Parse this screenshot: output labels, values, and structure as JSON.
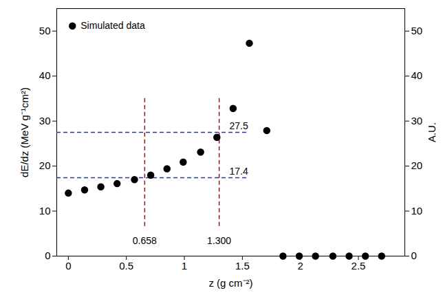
{
  "chart_data": {
    "type": "scatter",
    "x_label": "z (g cm⁻²)",
    "y_label": "dE/dz (MeV g⁻¹cm²)",
    "y2_label": "A.U.",
    "legend": "top-left",
    "series": [
      {
        "name": "Simulated data",
        "color": "#000000",
        "marker": "circle",
        "x": [
          0.0,
          0.14,
          0.28,
          0.42,
          0.57,
          0.71,
          0.85,
          0.99,
          1.14,
          1.28,
          1.42,
          1.56,
          1.71,
          1.85,
          1.99,
          2.13,
          2.28,
          2.42,
          2.56,
          2.7
        ],
        "values": [
          14.0,
          14.7,
          15.4,
          16.1,
          17.0,
          18.0,
          19.4,
          20.9,
          23.1,
          26.4,
          32.8,
          47.3,
          27.9,
          0,
          0,
          0,
          0,
          0,
          0,
          0
        ]
      }
    ],
    "xlim": [
      -0.1,
      2.9
    ],
    "xticks": [
      0,
      0.5,
      1,
      1.5,
      2,
      2.5
    ],
    "ylim": [
      0,
      55
    ],
    "yticks": [
      0,
      10,
      20,
      30,
      40,
      50
    ],
    "y2lim": [
      0,
      55
    ],
    "y2ticks": [
      0,
      10,
      20,
      30,
      40,
      50
    ],
    "annotations": {
      "vertical_lines": {
        "color": "#8b1a1a",
        "line_style": "dashed",
        "lines": [
          {
            "value": 0.658,
            "label": "0.658"
          },
          {
            "value": 1.3,
            "label": "1.300"
          }
        ]
      },
      "horizontal_lines": {
        "color": "#1f3a93",
        "line_style": "dashed",
        "lines": [
          {
            "value": 27.5,
            "label": "27.5"
          },
          {
            "value": 17.4,
            "label": "17.4"
          }
        ]
      }
    }
  }
}
